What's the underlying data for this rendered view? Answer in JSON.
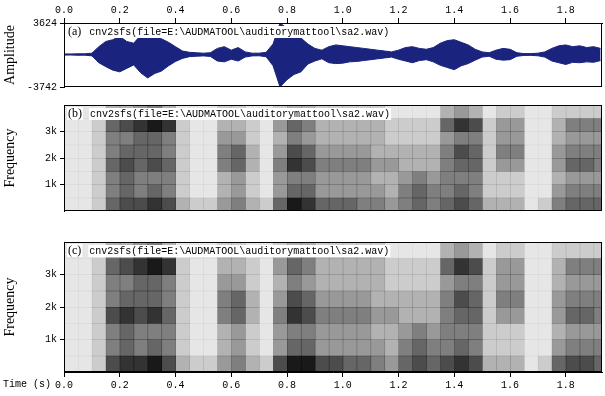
{
  "chart_data": [
    {
      "type": "area",
      "panel_label": "(a)",
      "title": "cnv2sfs(file=E:\\AUDMATOOL\\auditorymattool\\sa2.wav)",
      "ylabel": "Amplitude",
      "color": "#1a237e",
      "x": [
        0,
        0.025,
        0.05,
        0.075,
        0.1,
        0.125,
        0.15,
        0.175,
        0.2,
        0.225,
        0.25,
        0.275,
        0.3,
        0.325,
        0.35,
        0.375,
        0.4,
        0.425,
        0.45,
        0.475,
        0.5,
        0.525,
        0.55,
        0.575,
        0.6,
        0.625,
        0.65,
        0.675,
        0.7,
        0.725,
        0.75,
        0.775,
        0.8,
        0.825,
        0.85,
        0.875,
        0.9,
        0.925,
        0.95,
        0.975,
        1,
        1.025,
        1.05,
        1.075,
        1.1,
        1.125,
        1.15,
        1.175,
        1.2,
        1.225,
        1.25,
        1.275,
        1.3,
        1.325,
        1.35,
        1.375,
        1.4,
        1.425,
        1.45,
        1.475,
        1.5,
        1.525,
        1.55,
        1.575,
        1.6,
        1.625,
        1.65,
        1.675,
        1.7,
        1.725,
        1.75,
        1.775,
        1.8,
        1.825,
        1.85,
        1.875,
        1.9,
        1.925
      ],
      "upper": [
        60,
        60,
        80,
        80,
        150,
        900,
        1500,
        1700,
        2100,
        1500,
        1300,
        2200,
        2600,
        2300,
        1800,
        1400,
        900,
        400,
        250,
        200,
        150,
        200,
        700,
        900,
        500,
        800,
        300,
        150,
        150,
        250,
        1200,
        3624,
        3000,
        2400,
        1900,
        1200,
        700,
        500,
        900,
        1100,
        1000,
        900,
        800,
        700,
        600,
        500,
        400,
        300,
        500,
        800,
        900,
        700,
        600,
        800,
        1300,
        1600,
        1700,
        1400,
        1100,
        600,
        300,
        200,
        500,
        700,
        600,
        200,
        100,
        100,
        150,
        300,
        700,
        1000,
        1100,
        900,
        1000,
        800,
        900,
        700
      ],
      "lower": [
        -70,
        -60,
        -90,
        -80,
        -160,
        -950,
        -1400,
        -1800,
        -2000,
        -1600,
        -1200,
        -2100,
        -2700,
        -2200,
        -1900,
        -1300,
        -800,
        -450,
        -250,
        -200,
        -160,
        -220,
        -750,
        -850,
        -550,
        -750,
        -300,
        -160,
        -150,
        -260,
        -1300,
        -3742,
        -2900,
        -2300,
        -2000,
        -1100,
        -750,
        -500,
        -950,
        -1050,
        -1000,
        -850,
        -800,
        -700,
        -600,
        -500,
        -400,
        -300,
        -550,
        -750,
        -950,
        -700,
        -600,
        -850,
        -1250,
        -1500,
        -1750,
        -1300,
        -1050,
        -650,
        -300,
        -200,
        -550,
        -650,
        -600,
        -200,
        -110,
        -100,
        -150,
        -300,
        -750,
        -950,
        -1150,
        -900,
        -950,
        -850,
        -900,
        -700
      ],
      "xlim": [
        0,
        1.93
      ],
      "xticks": [
        {
          "value": 0,
          "label": "0.0"
        },
        0.2,
        0.4,
        0.6,
        0.8,
        {
          "value": 1,
          "label": "1.0"
        },
        1.2,
        1.4,
        1.6,
        1.8
      ],
      "ylim": [
        -3742,
        3624
      ],
      "yticks": [
        -3742,
        3624
      ],
      "grid": false
    },
    {
      "type": "heatmap",
      "panel_label": "(b)",
      "title": "cnv2sfs(file=E:\\AUDMATOOL\\auditorymattool\\sa2.wav)",
      "ylabel": "Frequency",
      "color": "#000000",
      "xbins": [
        0,
        0.05,
        0.1,
        0.15,
        0.2,
        0.25,
        0.3,
        0.35,
        0.4,
        0.45,
        0.5,
        0.55,
        0.6,
        0.65,
        0.7,
        0.75,
        0.8,
        0.85,
        0.9,
        0.95,
        1,
        1.05,
        1.1,
        1.15,
        1.2,
        1.25,
        1.3,
        1.35,
        1.4,
        1.45,
        1.5,
        1.55,
        1.6,
        1.65,
        1.7,
        1.75,
        1.8,
        1.85,
        1.9,
        1.95
      ],
      "ybins": [
        0,
        500,
        1000,
        1500,
        2000,
        2500,
        3000,
        3500,
        4000
      ],
      "zlim": [
        0,
        9
      ],
      "cells": [
        [
          1,
          1,
          1,
          1,
          1,
          1,
          1,
          1
        ],
        [
          1,
          1,
          1,
          1,
          1,
          1,
          1,
          1
        ],
        [
          2,
          2,
          2,
          2,
          2,
          2,
          2,
          1
        ],
        [
          6,
          5,
          5,
          6,
          5,
          5,
          6,
          3
        ],
        [
          7,
          6,
          6,
          7,
          6,
          5,
          7,
          3
        ],
        [
          7,
          5,
          5,
          6,
          6,
          6,
          8,
          4
        ],
        [
          8,
          6,
          5,
          7,
          6,
          6,
          9,
          5
        ],
        [
          7,
          5,
          5,
          6,
          5,
          5,
          8,
          3
        ],
        [
          3,
          2,
          2,
          2,
          2,
          2,
          2,
          1
        ],
        [
          2,
          1,
          1,
          1,
          1,
          1,
          1,
          1
        ],
        [
          2,
          1,
          1,
          1,
          1,
          1,
          1,
          1
        ],
        [
          4,
          3,
          3,
          5,
          5,
          4,
          3,
          2
        ],
        [
          5,
          4,
          4,
          6,
          6,
          4,
          3,
          2
        ],
        [
          3,
          2,
          2,
          3,
          3,
          2,
          2,
          1
        ],
        [
          2,
          1,
          1,
          1,
          1,
          1,
          1,
          1
        ],
        [
          6,
          4,
          4,
          5,
          4,
          3,
          4,
          2
        ],
        [
          9,
          6,
          5,
          8,
          7,
          5,
          6,
          3
        ],
        [
          8,
          6,
          5,
          7,
          6,
          4,
          5,
          3
        ],
        [
          6,
          4,
          4,
          5,
          4,
          3,
          3,
          2
        ],
        [
          6,
          4,
          4,
          5,
          4,
          3,
          3,
          2
        ],
        [
          6,
          4,
          4,
          5,
          4,
          3,
          3,
          2
        ],
        [
          5,
          4,
          4,
          5,
          4,
          3,
          3,
          2
        ],
        [
          5,
          4,
          3,
          4,
          3,
          3,
          3,
          2
        ],
        [
          4,
          3,
          3,
          4,
          3,
          2,
          2,
          1
        ],
        [
          5,
          5,
          4,
          3,
          3,
          2,
          2,
          1
        ],
        [
          6,
          6,
          5,
          3,
          3,
          2,
          2,
          1
        ],
        [
          5,
          5,
          4,
          3,
          3,
          2,
          2,
          1
        ],
        [
          6,
          5,
          5,
          5,
          5,
          4,
          6,
          3
        ],
        [
          7,
          6,
          5,
          6,
          7,
          5,
          8,
          4
        ],
        [
          6,
          5,
          5,
          6,
          6,
          5,
          7,
          3
        ],
        [
          3,
          2,
          2,
          2,
          2,
          2,
          2,
          1
        ],
        [
          3,
          2,
          2,
          4,
          5,
          4,
          4,
          2
        ],
        [
          3,
          2,
          2,
          4,
          5,
          4,
          4,
          2
        ],
        [
          1,
          1,
          1,
          1,
          1,
          1,
          1,
          1
        ],
        [
          2,
          1,
          1,
          1,
          1,
          1,
          1,
          1
        ],
        [
          5,
          4,
          3,
          4,
          4,
          3,
          3,
          2
        ],
        [
          6,
          5,
          4,
          6,
          5,
          4,
          5,
          2
        ],
        [
          6,
          5,
          4,
          6,
          5,
          4,
          5,
          2
        ],
        [
          6,
          5,
          4,
          5,
          5,
          4,
          5,
          2
        ]
      ],
      "xlim": [
        0,
        1.93
      ],
      "ylim": [
        0,
        4000
      ],
      "yticks": [
        {
          "value": 1000,
          "label": "1k"
        },
        {
          "value": 2000,
          "label": "2k"
        },
        {
          "value": 3000,
          "label": "3k"
        }
      ],
      "tick_labels": "y",
      "grid": false
    },
    {
      "type": "heatmap",
      "panel_label": "(c)",
      "title": "cnv2sfs(file=E:\\AUDMATOOL\\auditorymattool\\sa2.wav)",
      "ylabel": "Frequency",
      "xlabel": "Time (s)",
      "color": "#000000",
      "xbins": [
        0,
        0.05,
        0.1,
        0.15,
        0.2,
        0.25,
        0.3,
        0.35,
        0.4,
        0.45,
        0.5,
        0.55,
        0.6,
        0.65,
        0.7,
        0.75,
        0.8,
        0.85,
        0.9,
        0.95,
        1,
        1.05,
        1.1,
        1.15,
        1.2,
        1.25,
        1.3,
        1.35,
        1.4,
        1.45,
        1.5,
        1.55,
        1.6,
        1.65,
        1.7,
        1.75,
        1.8,
        1.85,
        1.9,
        1.95
      ],
      "ybins": [
        0,
        500,
        1000,
        1500,
        2000,
        2500,
        3000,
        3500,
        4000
      ],
      "zlim": [
        0,
        9
      ],
      "cells": [
        [
          1,
          1,
          1,
          1,
          1,
          1,
          1,
          1
        ],
        [
          1,
          1,
          1,
          1,
          1,
          1,
          1,
          1
        ],
        [
          2,
          2,
          2,
          2,
          2,
          2,
          2,
          1
        ],
        [
          7,
          5,
          5,
          7,
          5,
          5,
          6,
          3
        ],
        [
          8,
          6,
          6,
          8,
          6,
          5,
          7,
          3
        ],
        [
          8,
          5,
          5,
          7,
          6,
          6,
          8,
          4
        ],
        [
          9,
          6,
          5,
          8,
          6,
          6,
          9,
          5
        ],
        [
          7,
          5,
          5,
          6,
          5,
          5,
          8,
          3
        ],
        [
          3,
          2,
          2,
          2,
          2,
          2,
          2,
          1
        ],
        [
          2,
          1,
          1,
          1,
          1,
          1,
          1,
          1
        ],
        [
          2,
          1,
          1,
          1,
          1,
          1,
          1,
          1
        ],
        [
          4,
          3,
          3,
          5,
          5,
          4,
          3,
          2
        ],
        [
          5,
          4,
          4,
          6,
          6,
          4,
          3,
          2
        ],
        [
          3,
          2,
          2,
          3,
          3,
          2,
          2,
          1
        ],
        [
          2,
          1,
          1,
          1,
          1,
          1,
          1,
          1
        ],
        [
          7,
          4,
          4,
          5,
          4,
          3,
          4,
          2
        ],
        [
          9,
          6,
          5,
          8,
          7,
          5,
          6,
          3
        ],
        [
          9,
          6,
          5,
          7,
          6,
          4,
          5,
          3
        ],
        [
          7,
          4,
          4,
          5,
          4,
          3,
          3,
          2
        ],
        [
          7,
          4,
          4,
          5,
          4,
          3,
          3,
          2
        ],
        [
          6,
          4,
          4,
          5,
          4,
          3,
          3,
          2
        ],
        [
          6,
          4,
          4,
          5,
          4,
          3,
          3,
          2
        ],
        [
          5,
          4,
          3,
          4,
          3,
          3,
          3,
          2
        ],
        [
          4,
          3,
          3,
          4,
          3,
          2,
          2,
          1
        ],
        [
          6,
          5,
          4,
          3,
          3,
          2,
          2,
          1
        ],
        [
          7,
          6,
          5,
          3,
          3,
          2,
          2,
          1
        ],
        [
          6,
          5,
          4,
          3,
          3,
          2,
          2,
          1
        ],
        [
          7,
          5,
          5,
          5,
          5,
          4,
          6,
          3
        ],
        [
          8,
          6,
          5,
          6,
          7,
          5,
          8,
          4
        ],
        [
          7,
          5,
          5,
          6,
          6,
          5,
          7,
          3
        ],
        [
          3,
          2,
          2,
          2,
          2,
          2,
          2,
          1
        ],
        [
          3,
          2,
          2,
          4,
          5,
          4,
          4,
          2
        ],
        [
          3,
          2,
          2,
          4,
          5,
          4,
          4,
          2
        ],
        [
          1,
          1,
          1,
          1,
          1,
          1,
          1,
          1
        ],
        [
          2,
          1,
          1,
          1,
          1,
          1,
          1,
          1
        ],
        [
          6,
          4,
          3,
          4,
          4,
          3,
          3,
          2
        ],
        [
          7,
          5,
          4,
          6,
          5,
          4,
          5,
          2
        ],
        [
          7,
          5,
          4,
          6,
          5,
          4,
          5,
          2
        ],
        [
          6,
          5,
          4,
          5,
          5,
          4,
          5,
          2
        ]
      ],
      "xlim": [
        0,
        1.93
      ],
      "xticks": [
        {
          "value": 0,
          "label": "0.0"
        },
        0.2,
        0.4,
        0.6,
        0.8,
        {
          "value": 1,
          "label": "1.0"
        },
        1.2,
        1.4,
        1.6,
        1.8
      ],
      "ylim": [
        0,
        4000
      ],
      "yticks": [
        {
          "value": 1000,
          "label": "1k"
        },
        {
          "value": 2000,
          "label": "2k"
        },
        {
          "value": 3000,
          "label": "3k"
        }
      ],
      "grid": false
    }
  ]
}
